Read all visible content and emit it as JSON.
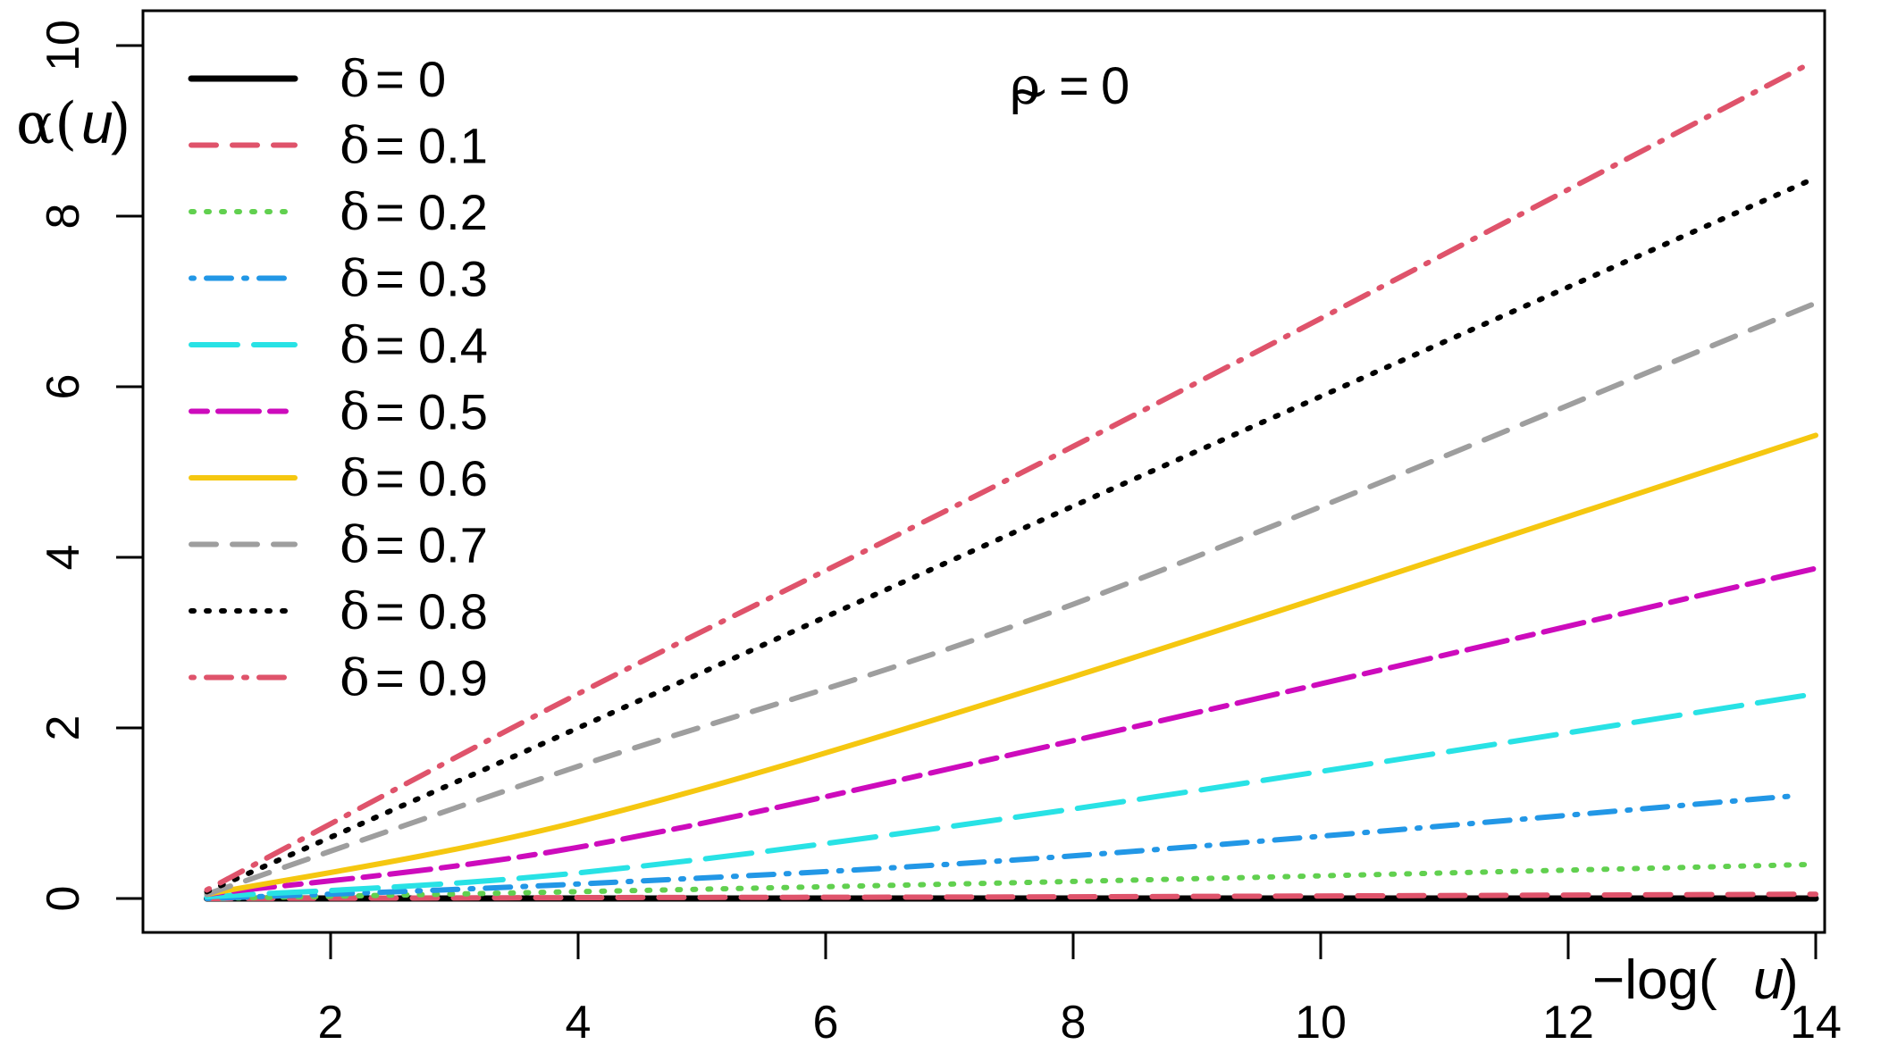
{
  "chart_data": {
    "type": "line",
    "title": "",
    "annotation": {
      "lhs": "ρ",
      "accent": "~",
      "eq": "=",
      "rhs": "0"
    },
    "xlabel": {
      "prefix": "−log(",
      "var": "u",
      "suffix": ")"
    },
    "ylabel": {
      "prefix": "α(",
      "var": "u",
      "suffix": ")"
    },
    "xlim": [
      0.3,
      14.5
    ],
    "ylim": [
      -0.4,
      10.4
    ],
    "x_ticks": [
      "2",
      "4",
      "6",
      "8",
      "10",
      "12",
      "14"
    ],
    "y_ticks": [
      "0",
      "2",
      "4",
      "6",
      "8",
      "10"
    ],
    "grid": false,
    "legend_position": "top-left",
    "series": [
      {
        "name": "δ = 0",
        "legend_sym": "δ",
        "legend_eq": "=",
        "legend_val": "0",
        "color": "#000000",
        "dash": "solid",
        "x": [
          1,
          14
        ],
        "y": [
          0.0,
          0.0
        ]
      },
      {
        "name": "δ = 0.1",
        "legend_sym": "δ",
        "legend_eq": "=",
        "legend_val": "0.1",
        "color": "#DF536B",
        "dash": "dashed",
        "x": [
          1,
          4,
          8,
          14
        ],
        "y": [
          0.0,
          0.01,
          0.02,
          0.05
        ]
      },
      {
        "name": "δ = 0.2",
        "legend_sym": "δ",
        "legend_eq": "=",
        "legend_val": "0.2",
        "color": "#61D04F",
        "dash": "dotted",
        "x": [
          1,
          4,
          8,
          14
        ],
        "y": [
          0.0,
          0.08,
          0.2,
          0.4
        ]
      },
      {
        "name": "δ = 0.3",
        "legend_sym": "δ",
        "legend_eq": "=",
        "legend_val": "0.3",
        "color": "#2297E6",
        "dash": "dotdash",
        "x": [
          1,
          4,
          8,
          13.8
        ],
        "y": [
          0.0,
          0.17,
          0.5,
          1.2
        ]
      },
      {
        "name": "δ = 0.4",
        "legend_sym": "δ",
        "legend_eq": "=",
        "legend_val": "0.4",
        "color": "#28E2E5",
        "dash": "longdash",
        "x": [
          1,
          4,
          8,
          14
        ],
        "y": [
          0.02,
          0.3,
          1.05,
          2.4
        ]
      },
      {
        "name": "δ = 0.5",
        "legend_sym": "δ",
        "legend_eq": "=",
        "legend_val": "0.5",
        "color": "#CD0BBC",
        "dash": "twodash",
        "x": [
          1,
          4,
          8,
          14
        ],
        "y": [
          0.05,
          0.6,
          1.85,
          3.87
        ]
      },
      {
        "name": "δ = 0.6",
        "legend_sym": "δ",
        "legend_eq": "=",
        "legend_val": "0.6",
        "color": "#F5C710",
        "dash": "solid",
        "x": [
          1,
          4,
          8,
          14
        ],
        "y": [
          0.05,
          0.9,
          2.6,
          5.43
        ]
      },
      {
        "name": "δ = 0.7",
        "legend_sym": "δ",
        "legend_eq": "=",
        "legend_val": "0.7",
        "color": "#9E9E9E",
        "dash": "dashed",
        "x": [
          1,
          4,
          8,
          14
        ],
        "y": [
          0.05,
          1.55,
          3.45,
          6.98
        ]
      },
      {
        "name": "δ = 0.8",
        "legend_sym": "δ",
        "legend_eq": "=",
        "legend_val": "0.8",
        "color": "#000000",
        "dash": "dotted",
        "x": [
          1,
          4,
          8,
          14
        ],
        "y": [
          0.08,
          2.0,
          4.6,
          8.45
        ]
      },
      {
        "name": "δ = 0.9",
        "legend_sym": "δ",
        "legend_eq": "=",
        "legend_val": "0.9",
        "color": "#DF536B",
        "dash": "dotdash",
        "x": [
          1,
          4,
          8,
          13.9
        ],
        "y": [
          0.1,
          2.4,
          5.3,
          9.75
        ]
      }
    ]
  }
}
